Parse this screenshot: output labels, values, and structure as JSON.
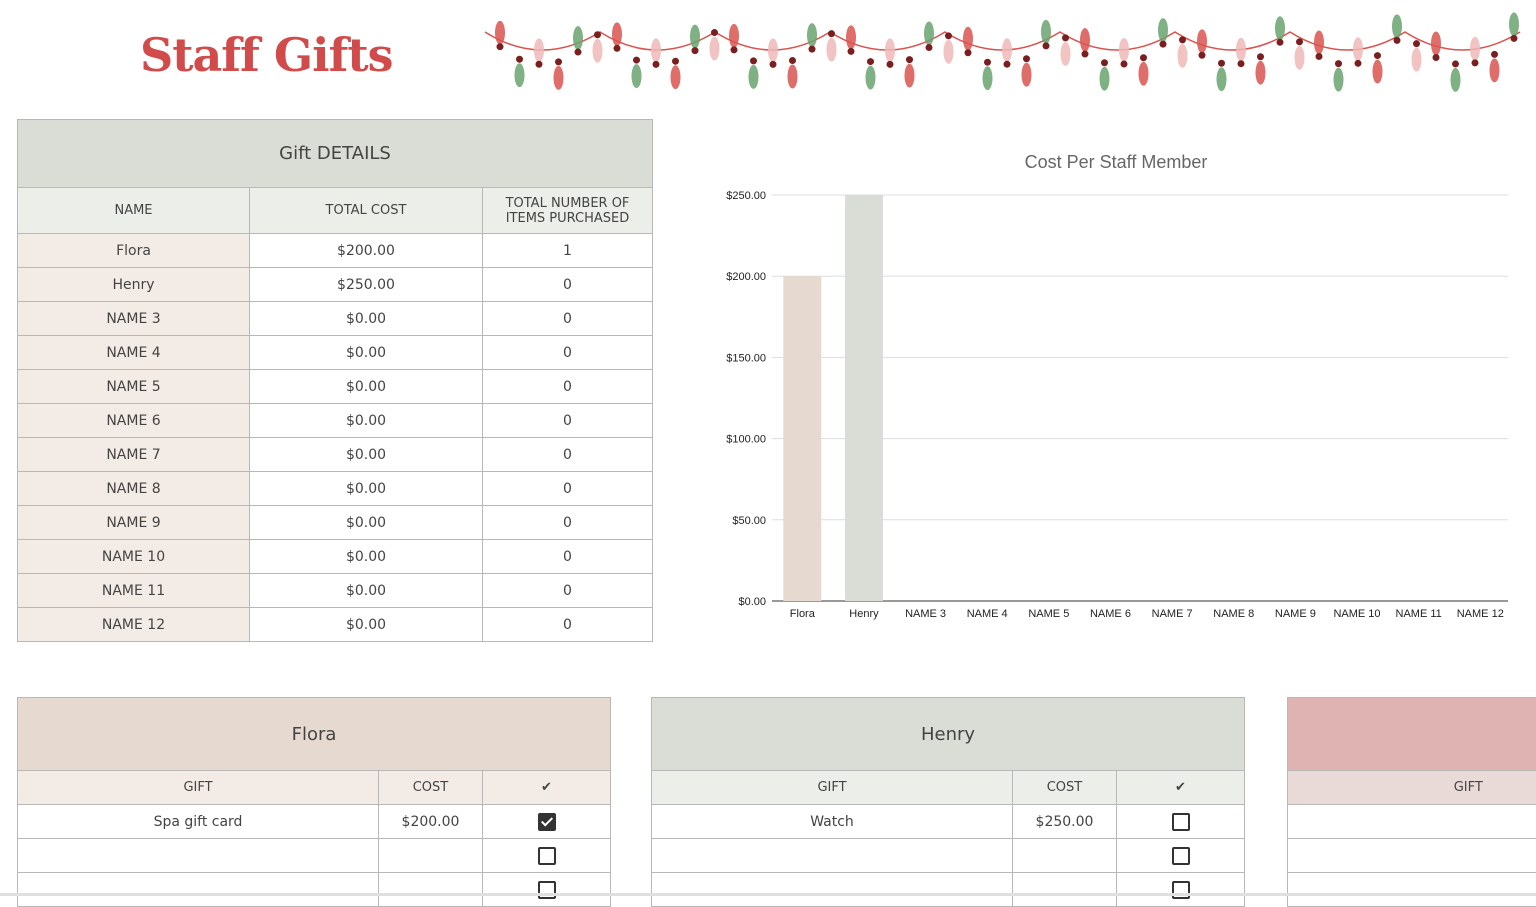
{
  "title": "Staff Gifts",
  "details": {
    "caption": "Gift DETAILS",
    "headers": [
      "NAME",
      "TOTAL COST",
      "TOTAL NUMBER OF ITEMS PURCHASED"
    ],
    "rows": [
      [
        "Flora",
        "$200.00",
        "1"
      ],
      [
        "Henry",
        "$250.00",
        "0"
      ],
      [
        "NAME 3",
        "$0.00",
        "0"
      ],
      [
        "NAME 4",
        "$0.00",
        "0"
      ],
      [
        "NAME 5",
        "$0.00",
        "0"
      ],
      [
        "NAME 6",
        "$0.00",
        "0"
      ],
      [
        "NAME 7",
        "$0.00",
        "0"
      ],
      [
        "NAME 8",
        "$0.00",
        "0"
      ],
      [
        "NAME 9",
        "$0.00",
        "0"
      ],
      [
        "NAME 10",
        "$0.00",
        "0"
      ],
      [
        "NAME 11",
        "$0.00",
        "0"
      ],
      [
        "NAME 12",
        "$0.00",
        "0"
      ]
    ]
  },
  "chart_data": {
    "type": "bar",
    "title": "Cost Per Staff Member",
    "categories": [
      "Flora",
      "Henry",
      "NAME 3",
      "NAME 4",
      "NAME 5",
      "NAME 6",
      "NAME 7",
      "NAME 8",
      "NAME 9",
      "NAME 10",
      "NAME 11",
      "NAME 12"
    ],
    "values": [
      200,
      250,
      0,
      0,
      0,
      0,
      0,
      0,
      0,
      0,
      0,
      0
    ],
    "bar_colors": [
      "#e6d9cf",
      "#d9ddd5"
    ],
    "ylim": [
      0,
      250
    ],
    "yticks": [
      "$0.00",
      "$50.00",
      "$100.00",
      "$150.00",
      "$200.00",
      "$250.00"
    ],
    "grid": true
  },
  "gift_tables": [
    {
      "name": "Flora",
      "header_color": "#e6d9cf",
      "sub_color": "#f3ebe5",
      "headers": [
        "GIFT",
        "COST",
        "✔"
      ],
      "rows": [
        {
          "gift": "Spa gift card",
          "cost": "$200.00",
          "checked": true
        },
        {
          "gift": "",
          "cost": "",
          "checked": false
        },
        {
          "gift": "",
          "cost": "",
          "checked": false
        }
      ]
    },
    {
      "name": "Henry",
      "header_color": "#d9ddd5",
      "sub_color": "#eceeea",
      "headers": [
        "GIFT",
        "COST",
        "✔"
      ],
      "rows": [
        {
          "gift": "Watch",
          "cost": "$250.00",
          "checked": false
        },
        {
          "gift": "",
          "cost": "",
          "checked": false
        },
        {
          "gift": "",
          "cost": "",
          "checked": false
        }
      ]
    },
    {
      "name": "",
      "header_color": "#dfb3b1",
      "sub_color": "#e9dad8",
      "headers": [
        "GIFT"
      ],
      "rows": [
        {
          "gift": ""
        },
        {
          "gift": ""
        },
        {
          "gift": ""
        }
      ]
    }
  ]
}
